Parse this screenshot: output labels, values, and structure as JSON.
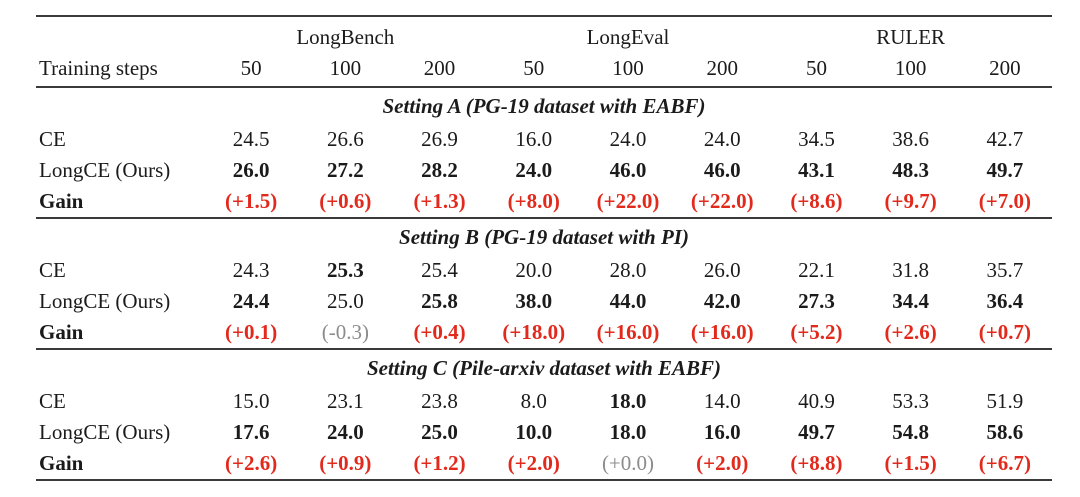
{
  "page": {
    "background": "#ffffff"
  },
  "colors": {
    "text": "#1b1b1b",
    "rule": "#3a3a3a",
    "gain_positive": "#e2291c",
    "gain_neutral": "#8c8c8c"
  },
  "table": {
    "row_header": "Training steps",
    "groups": [
      "LongBench",
      "LongEval",
      "RULER"
    ],
    "steps": [
      "50",
      "100",
      "200",
      "50",
      "100",
      "200",
      "50",
      "100",
      "200"
    ],
    "sections": [
      {
        "title": "Setting A (PG-19 dataset with EABF)",
        "rows": [
          {
            "label": "CE",
            "bold": false,
            "cells": [
              {
                "t": "24.5"
              },
              {
                "t": "26.6"
              },
              {
                "t": "26.9"
              },
              {
                "t": "16.0"
              },
              {
                "t": "24.0"
              },
              {
                "t": "24.0"
              },
              {
                "t": "34.5"
              },
              {
                "t": "38.6"
              },
              {
                "t": "42.7"
              }
            ]
          },
          {
            "label": "LongCE (Ours)",
            "bold": false,
            "cells": [
              {
                "t": "26.0",
                "b": true
              },
              {
                "t": "27.2",
                "b": true
              },
              {
                "t": "28.2",
                "b": true
              },
              {
                "t": "24.0",
                "b": true
              },
              {
                "t": "46.0",
                "b": true
              },
              {
                "t": "46.0",
                "b": true
              },
              {
                "t": "43.1",
                "b": true
              },
              {
                "t": "48.3",
                "b": true
              },
              {
                "t": "49.7",
                "b": true
              }
            ]
          },
          {
            "label": "Gain",
            "bold": true,
            "cells": [
              {
                "t": "(+1.5)",
                "b": true,
                "c": "red"
              },
              {
                "t": "(+0.6)",
                "b": true,
                "c": "red"
              },
              {
                "t": "(+1.3)",
                "b": true,
                "c": "red"
              },
              {
                "t": "(+8.0)",
                "b": true,
                "c": "red"
              },
              {
                "t": "(+22.0)",
                "b": true,
                "c": "red"
              },
              {
                "t": "(+22.0)",
                "b": true,
                "c": "red"
              },
              {
                "t": "(+8.6)",
                "b": true,
                "c": "red"
              },
              {
                "t": "(+9.7)",
                "b": true,
                "c": "red"
              },
              {
                "t": "(+7.0)",
                "b": true,
                "c": "red"
              }
            ]
          }
        ]
      },
      {
        "title": "Setting B (PG-19 dataset with PI)",
        "rows": [
          {
            "label": "CE",
            "bold": false,
            "cells": [
              {
                "t": "24.3"
              },
              {
                "t": "25.3",
                "b": true
              },
              {
                "t": "25.4"
              },
              {
                "t": "20.0"
              },
              {
                "t": "28.0"
              },
              {
                "t": "26.0"
              },
              {
                "t": "22.1"
              },
              {
                "t": "31.8"
              },
              {
                "t": "35.7"
              }
            ]
          },
          {
            "label": "LongCE (Ours)",
            "bold": false,
            "cells": [
              {
                "t": "24.4",
                "b": true
              },
              {
                "t": "25.0"
              },
              {
                "t": "25.8",
                "b": true
              },
              {
                "t": "38.0",
                "b": true
              },
              {
                "t": "44.0",
                "b": true
              },
              {
                "t": "42.0",
                "b": true
              },
              {
                "t": "27.3",
                "b": true
              },
              {
                "t": "34.4",
                "b": true
              },
              {
                "t": "36.4",
                "b": true
              }
            ]
          },
          {
            "label": "Gain",
            "bold": true,
            "cells": [
              {
                "t": "(+0.1)",
                "b": true,
                "c": "red"
              },
              {
                "t": "(-0.3)",
                "c": "gray"
              },
              {
                "t": "(+0.4)",
                "b": true,
                "c": "red"
              },
              {
                "t": "(+18.0)",
                "b": true,
                "c": "red"
              },
              {
                "t": "(+16.0)",
                "b": true,
                "c": "red"
              },
              {
                "t": "(+16.0)",
                "b": true,
                "c": "red"
              },
              {
                "t": "(+5.2)",
                "b": true,
                "c": "red"
              },
              {
                "t": "(+2.6)",
                "b": true,
                "c": "red"
              },
              {
                "t": "(+0.7)",
                "b": true,
                "c": "red"
              }
            ]
          }
        ]
      },
      {
        "title": "Setting C (Pile-arxiv dataset with EABF)",
        "rows": [
          {
            "label": "CE",
            "bold": false,
            "cells": [
              {
                "t": "15.0"
              },
              {
                "t": "23.1"
              },
              {
                "t": "23.8"
              },
              {
                "t": "8.0"
              },
              {
                "t": "18.0",
                "b": true
              },
              {
                "t": "14.0"
              },
              {
                "t": "40.9"
              },
              {
                "t": "53.3"
              },
              {
                "t": "51.9"
              }
            ]
          },
          {
            "label": "LongCE (Ours)",
            "bold": false,
            "cells": [
              {
                "t": "17.6",
                "b": true
              },
              {
                "t": "24.0",
                "b": true
              },
              {
                "t": "25.0",
                "b": true
              },
              {
                "t": "10.0",
                "b": true
              },
              {
                "t": "18.0",
                "b": true
              },
              {
                "t": "16.0",
                "b": true
              },
              {
                "t": "49.7",
                "b": true
              },
              {
                "t": "54.8",
                "b": true
              },
              {
                "t": "58.6",
                "b": true
              }
            ]
          },
          {
            "label": "Gain",
            "bold": true,
            "cells": [
              {
                "t": "(+2.6)",
                "b": true,
                "c": "red"
              },
              {
                "t": "(+0.9)",
                "b": true,
                "c": "red"
              },
              {
                "t": "(+1.2)",
                "b": true,
                "c": "red"
              },
              {
                "t": "(+2.0)",
                "b": true,
                "c": "red"
              },
              {
                "t": "(+0.0)",
                "c": "gray"
              },
              {
                "t": "(+2.0)",
                "b": true,
                "c": "red"
              },
              {
                "t": "(+8.8)",
                "b": true,
                "c": "red"
              },
              {
                "t": "(+1.5)",
                "b": true,
                "c": "red"
              },
              {
                "t": "(+6.7)",
                "b": true,
                "c": "red"
              }
            ]
          }
        ]
      }
    ]
  }
}
